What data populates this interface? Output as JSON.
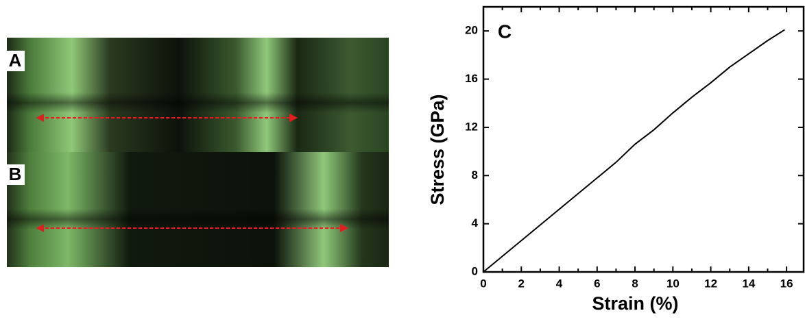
{
  "panels": [
    {
      "label": "A"
    },
    {
      "label": "B"
    }
  ],
  "chart_data": {
    "type": "line",
    "annotation": "C",
    "xlabel": "Strain (%)",
    "ylabel": "Stress (GPa)",
    "x": [
      0,
      1,
      2,
      3,
      4,
      5,
      6,
      7,
      8,
      9,
      10,
      11,
      12,
      13,
      14,
      15,
      15.9
    ],
    "series": [
      {
        "color": "#000000",
        "values": [
          0,
          1.3,
          2.6,
          3.9,
          5.2,
          6.5,
          7.8,
          9.1,
          10.6,
          11.8,
          13.2,
          14.5,
          15.7,
          17,
          18.1,
          19.2,
          20.1
        ]
      }
    ],
    "xlim": [
      0,
      16.9
    ],
    "ylim": [
      0,
      22
    ],
    "xticks": [
      0,
      2,
      4,
      6,
      8,
      10,
      12,
      14,
      16
    ],
    "xminorticks": [
      1,
      3,
      5,
      7,
      9,
      11,
      13,
      15
    ],
    "yticks": [
      0,
      4,
      8,
      12,
      16,
      20
    ]
  }
}
